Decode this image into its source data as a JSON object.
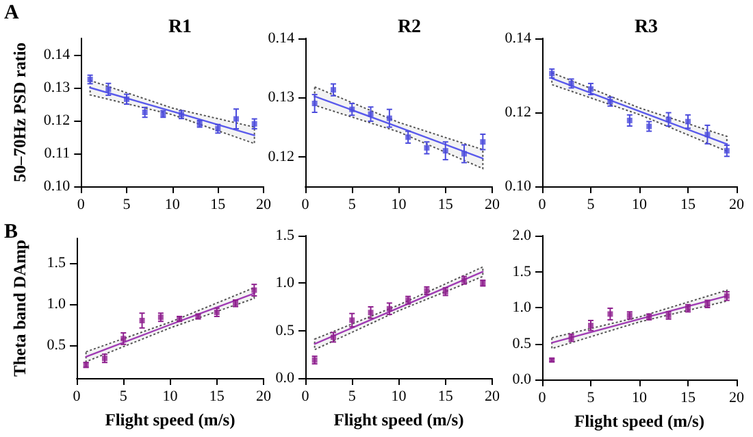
{
  "chart_data": [
    {
      "type": "scatter",
      "title": "R1",
      "ylabel": "50–70Hz PSD ratio",
      "annotations": [
        "A"
      ],
      "marker": "square",
      "x": [
        1,
        3,
        5,
        7,
        9,
        11,
        13,
        15,
        17,
        19
      ],
      "xlim": [
        0,
        20
      ],
      "xticks": [
        0,
        5,
        10,
        15,
        20
      ],
      "ylim": [
        0.1,
        0.145
      ],
      "yticks": [
        {
          "value": 0.1,
          "label": "0.10"
        },
        0.11,
        {
          "value": 0.12,
          "label": "0.12"
        },
        0.13,
        0.14
      ],
      "series": [
        {
          "color": "#4b4bdc",
          "values": [
            0.1325,
            0.1295,
            0.1265,
            0.1225,
            0.122,
            0.1218,
            0.119,
            0.1175,
            0.1205,
            0.119
          ],
          "errors": [
            0.0013,
            0.0018,
            0.0015,
            0.0015,
            0.001,
            0.0012,
            0.001,
            0.0013,
            0.003,
            0.0015
          ]
        },
        {
          "type": "line",
          "marker": "none",
          "color": "#5a5aec",
          "x": [
            1,
            10,
            19
          ],
          "values": [
            0.13,
            0.1228,
            0.1155
          ],
          "lower": [
            0.1278,
            0.1218,
            0.113
          ],
          "upper": [
            0.1322,
            0.1238,
            0.118
          ]
        }
      ]
    },
    {
      "type": "scatter",
      "title": "R2",
      "marker": "square",
      "x": [
        1,
        3,
        5,
        7,
        9,
        11,
        13,
        15,
        17,
        19
      ],
      "xlim": [
        0,
        20
      ],
      "xticks": [
        0,
        5,
        10,
        15,
        20
      ],
      "ylim": [
        0.115,
        0.14
      ],
      "yticks": [
        {
          "value": 0.12,
          "label": "0.12"
        },
        0.13,
        0.14
      ],
      "series": [
        {
          "color": "#4b4bdc",
          "values": [
            0.129,
            0.1313,
            0.128,
            0.1272,
            0.1265,
            0.1233,
            0.1215,
            0.121,
            0.1205,
            0.1225
          ],
          "errors": [
            0.0015,
            0.001,
            0.001,
            0.0012,
            0.0015,
            0.001,
            0.001,
            0.0015,
            0.0015,
            0.0013
          ]
        },
        {
          "type": "line",
          "marker": "none",
          "color": "#5a5aec",
          "x": [
            1,
            10,
            19
          ],
          "values": [
            0.1302,
            0.125,
            0.1197
          ],
          "lower": [
            0.1287,
            0.1242,
            0.118
          ],
          "upper": [
            0.1318,
            0.1258,
            0.1212
          ]
        }
      ]
    },
    {
      "type": "scatter",
      "title": "R3",
      "marker": "square",
      "x": [
        1,
        3,
        5,
        7,
        9,
        11,
        13,
        15,
        17,
        19
      ],
      "xlim": [
        0,
        20
      ],
      "xticks": [
        0,
        5,
        10,
        15,
        20
      ],
      "ylim": [
        0.1,
        0.14
      ],
      "yticks": [
        {
          "value": 0.1,
          "label": "0.10"
        },
        {
          "value": 0.12,
          "label": "0.12"
        },
        0.14
      ],
      "series": [
        {
          "color": "#4b4bdc",
          "values": [
            0.1305,
            0.1278,
            0.1263,
            0.1229,
            0.1178,
            0.1162,
            0.1181,
            0.1175,
            0.114,
            0.1096
          ],
          "errors": [
            0.0012,
            0.0012,
            0.0015,
            0.0012,
            0.0015,
            0.0013,
            0.0018,
            0.0018,
            0.0025,
            0.0015
          ]
        },
        {
          "type": "line",
          "marker": "none",
          "color": "#5a5aec",
          "x": [
            1,
            10,
            19
          ],
          "values": [
            0.1292,
            0.1203,
            0.1114
          ],
          "lower": [
            0.1275,
            0.1194,
            0.1095
          ],
          "upper": [
            0.1307,
            0.1212,
            0.1135
          ]
        }
      ]
    },
    {
      "type": "scatter",
      "ylabel": "Theta band DAmp",
      "xlabel": "Flight speed (m/s)",
      "annotations": [
        "B"
      ],
      "marker": "square",
      "x": [
        1,
        3,
        5,
        7,
        9,
        11,
        13,
        15,
        17,
        19
      ],
      "xlim": [
        0,
        20
      ],
      "xticks": [
        0,
        5,
        10,
        15,
        20
      ],
      "ylim": [
        0.1,
        1.8
      ],
      "yticks": [
        0.5,
        {
          "value": 1,
          "label": "1.0"
        },
        1.5
      ],
      "series": [
        {
          "color": "#8e1f8e",
          "values": [
            0.26,
            0.34,
            0.58,
            0.8,
            0.84,
            0.82,
            0.85,
            0.9,
            1.01,
            1.17
          ],
          "errors": [
            0.03,
            0.05,
            0.07,
            0.09,
            0.05,
            0.03,
            0.03,
            0.05,
            0.04,
            0.07
          ]
        },
        {
          "type": "line",
          "marker": "none",
          "color": "#a03cb4",
          "x": [
            1,
            10,
            19
          ],
          "values": [
            0.36,
            0.75,
            1.13
          ],
          "lower": [
            0.3,
            0.71,
            1.07
          ],
          "upper": [
            0.42,
            0.78,
            1.2
          ]
        }
      ]
    },
    {
      "type": "scatter",
      "xlabel": "Flight speed (m/s)",
      "marker": "square",
      "x": [
        1,
        3,
        5,
        7,
        9,
        11,
        13,
        15,
        17,
        19
      ],
      "xlim": [
        0,
        20
      ],
      "xticks": [
        0,
        5,
        10,
        15,
        20
      ],
      "ylim": [
        0,
        1.5
      ],
      "yticks": [
        {
          "value": 0,
          "label": "0.0"
        },
        0.5,
        {
          "value": 1,
          "label": "1.0"
        },
        1.5
      ],
      "series": [
        {
          "color": "#8e1f8e",
          "values": [
            0.19,
            0.43,
            0.61,
            0.69,
            0.73,
            0.82,
            0.92,
            0.91,
            1.03,
            1.0
          ],
          "errors": [
            0.04,
            0.05,
            0.07,
            0.06,
            0.06,
            0.04,
            0.04,
            0.04,
            0.04,
            0.03
          ]
        },
        {
          "type": "line",
          "marker": "none",
          "color": "#a03cb4",
          "x": [
            1,
            10,
            19
          ],
          "values": [
            0.36,
            0.74,
            1.12
          ],
          "lower": [
            0.3,
            0.71,
            1.07
          ],
          "upper": [
            0.41,
            0.77,
            1.17
          ]
        }
      ]
    },
    {
      "type": "scatter",
      "xlabel": "Flight speed (m/s)",
      "marker": "square",
      "x": [
        1,
        3,
        5,
        7,
        9,
        11,
        13,
        15,
        17,
        19
      ],
      "xlim": [
        0,
        20
      ],
      "xticks": [
        0,
        5,
        10,
        15,
        20
      ],
      "ylim": [
        0,
        2
      ],
      "yticks": [
        {
          "value": 0,
          "label": "0.0"
        },
        0.5,
        {
          "value": 1,
          "label": "1.0"
        },
        1.5,
        {
          "value": 2,
          "label": "2.0"
        }
      ],
      "series": [
        {
          "color": "#8e1f8e",
          "values": [
            0.27,
            0.58,
            0.75,
            0.91,
            0.89,
            0.87,
            0.89,
            0.99,
            1.05,
            1.16
          ],
          "errors": [
            0.02,
            0.05,
            0.07,
            0.08,
            0.05,
            0.04,
            0.05,
            0.05,
            0.05,
            0.06
          ]
        },
        {
          "type": "line",
          "marker": "none",
          "color": "#a03cb4",
          "x": [
            1,
            10,
            19
          ],
          "values": [
            0.51,
            0.84,
            1.16
          ],
          "lower": [
            0.43,
            0.8,
            1.09
          ],
          "upper": [
            0.58,
            0.87,
            1.24
          ]
        }
      ]
    }
  ]
}
